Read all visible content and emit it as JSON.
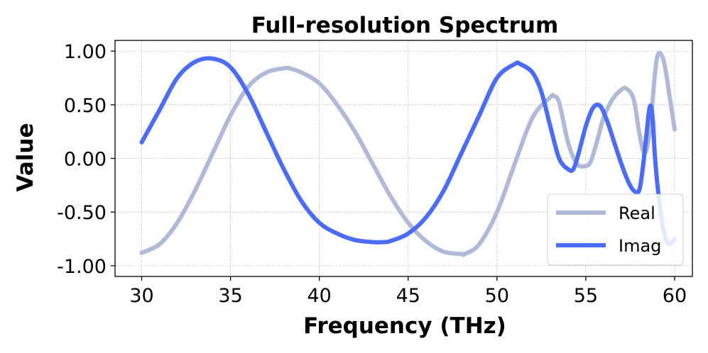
{
  "chart_data": {
    "type": "line",
    "title": "Full-resolution Spectrum",
    "xlabel": "Frequency (THz)",
    "ylabel": "Value",
    "xlim": [
      28.5,
      61.0
    ],
    "ylim": [
      -1.1,
      1.1
    ],
    "xticks": [
      30,
      35,
      40,
      45,
      50,
      55,
      60
    ],
    "xtick_labels": [
      "30",
      "35",
      "40",
      "45",
      "50",
      "55",
      "60"
    ],
    "yticks": [
      1.0,
      0.5,
      0.0,
      -0.5,
      -1.0
    ],
    "ytick_labels": [
      "1.00",
      "0.50",
      "0.00",
      "-0.50",
      "-1.00"
    ],
    "grid": true,
    "legend_position": "lower-right",
    "series": [
      {
        "name": "Real",
        "color": "#b0bad8",
        "x": [
          30,
          31,
          32,
          33,
          34,
          35,
          36,
          37,
          38,
          38.3,
          39,
          40,
          41,
          42,
          43,
          44,
          45,
          46,
          47,
          48,
          48.2,
          49,
          50,
          51,
          52,
          53,
          53.2,
          53.5,
          54,
          54.5,
          55,
          55.3,
          55.7,
          56,
          56.5,
          57,
          57.3,
          57.7,
          58,
          58.3,
          58.6,
          58.9,
          59.1,
          59.4,
          59.7,
          60
        ],
        "y": [
          -0.88,
          -0.8,
          -0.6,
          -0.3,
          0.05,
          0.4,
          0.67,
          0.8,
          0.84,
          0.84,
          0.8,
          0.7,
          0.5,
          0.25,
          -0.05,
          -0.35,
          -0.6,
          -0.77,
          -0.87,
          -0.89,
          -0.89,
          -0.8,
          -0.5,
          -0.05,
          0.38,
          0.57,
          0.58,
          0.52,
          0.15,
          -0.05,
          -0.07,
          -0.02,
          0.2,
          0.38,
          0.55,
          0.64,
          0.65,
          0.55,
          0.25,
          0.05,
          0.25,
          0.8,
          0.98,
          0.9,
          0.6,
          0.27
        ]
      },
      {
        "name": "Imag",
        "color": "#4a6cf7",
        "x": [
          30,
          31,
          32,
          33,
          34,
          35,
          36,
          37,
          38,
          39,
          40,
          41,
          42,
          43,
          43.6,
          44,
          45,
          46,
          47,
          48,
          49,
          50,
          51,
          51.3,
          52,
          52.5,
          53,
          53.5,
          54,
          54.3,
          54.6,
          55,
          55.4,
          55.8,
          56.2,
          56.6,
          57,
          57.4,
          57.7,
          58,
          58.2,
          58.4,
          58.6,
          58.75,
          58.9,
          59.1,
          59.3,
          59.5,
          59.7,
          60
        ],
        "y": [
          0.15,
          0.45,
          0.75,
          0.9,
          0.93,
          0.85,
          0.6,
          0.25,
          -0.1,
          -0.4,
          -0.6,
          -0.7,
          -0.76,
          -0.78,
          -0.78,
          -0.77,
          -0.7,
          -0.55,
          -0.3,
          0.05,
          0.4,
          0.75,
          0.88,
          0.88,
          0.8,
          0.62,
          0.3,
          0.0,
          -0.1,
          -0.1,
          0.05,
          0.3,
          0.47,
          0.49,
          0.35,
          0.15,
          -0.05,
          -0.22,
          -0.3,
          -0.3,
          -0.1,
          0.2,
          0.48,
          0.4,
          0.0,
          -0.35,
          -0.6,
          -0.75,
          -0.8,
          -0.75
        ]
      }
    ]
  }
}
